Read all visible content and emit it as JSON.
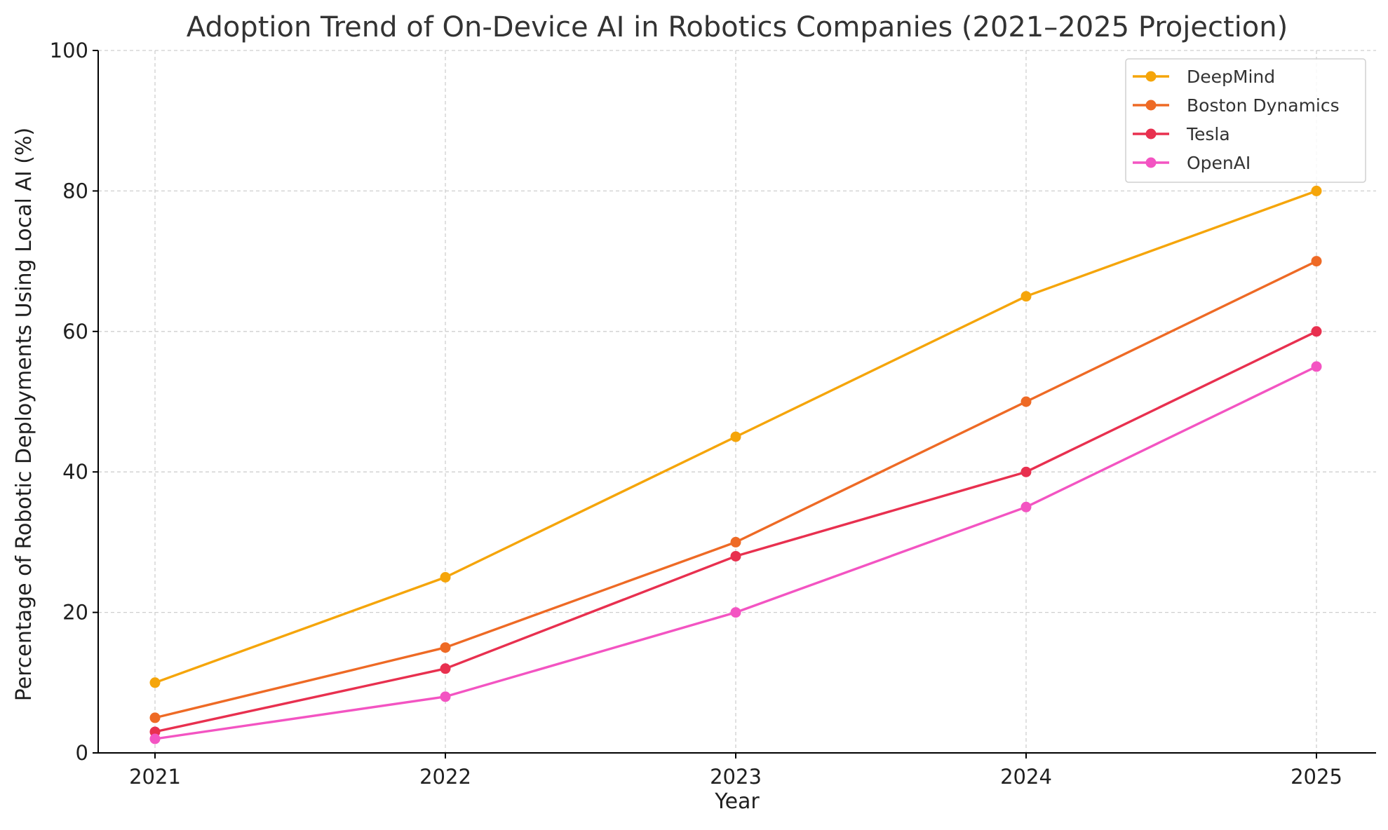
{
  "chart_data": {
    "type": "line",
    "title": "Adoption Trend of On-Device AI in Robotics Companies (2021–2025 Projection)",
    "xlabel": "Year",
    "ylabel": "Percentage of Robotic Deployments Using Local AI (%)",
    "x": [
      "2021",
      "2022",
      "2023",
      "2024",
      "2025"
    ],
    "ylim": [
      0,
      100
    ],
    "yticks": [
      0,
      20,
      40,
      60,
      80,
      100
    ],
    "grid": true,
    "legend_position": "top-right",
    "series": [
      {
        "name": "DeepMind",
        "color": "#f5a50a",
        "values": [
          10,
          25,
          45,
          65,
          80
        ]
      },
      {
        "name": "Boston Dynamics",
        "color": "#ee6a25",
        "values": [
          5,
          15,
          30,
          50,
          70
        ]
      },
      {
        "name": "Tesla",
        "color": "#e8304f",
        "values": [
          3,
          12,
          28,
          40,
          60
        ]
      },
      {
        "name": "OpenAI",
        "color": "#f354c2",
        "values": [
          2,
          8,
          20,
          35,
          55
        ]
      }
    ]
  }
}
